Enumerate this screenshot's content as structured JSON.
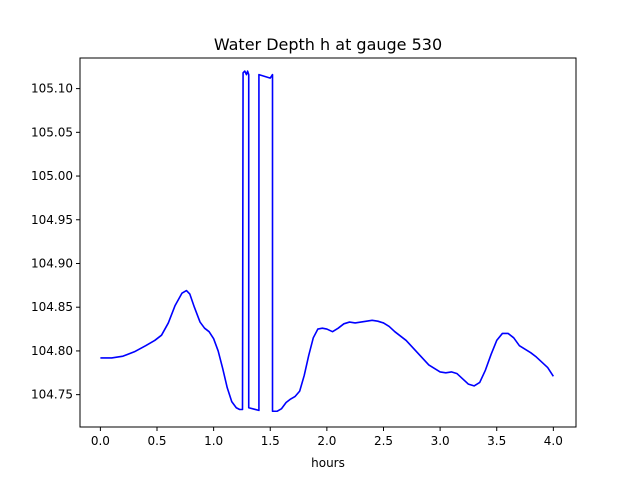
{
  "chart_data": {
    "type": "line",
    "title": "Water Depth h at gauge 530",
    "xlabel": "hours",
    "ylabel": "",
    "xlim": [
      -0.18,
      4.2
    ],
    "ylim": [
      104.713,
      105.135
    ],
    "grid": false,
    "x_ticks": [
      0.0,
      0.5,
      1.0,
      1.5,
      2.0,
      2.5,
      3.0,
      3.5,
      4.0
    ],
    "x_tick_labels": [
      "0.0",
      "0.5",
      "1.0",
      "1.5",
      "2.0",
      "2.5",
      "3.0",
      "3.5",
      "4.0"
    ],
    "y_ticks": [
      104.75,
      104.8,
      104.85,
      104.9,
      104.95,
      105.0,
      105.05,
      105.1
    ],
    "y_tick_labels": [
      "104.75",
      "104.80",
      "104.85",
      "104.90",
      "104.95",
      "105.00",
      "105.05",
      "105.10"
    ],
    "series": [
      {
        "color": "#0000ff",
        "x": [
          0.0,
          0.1,
          0.2,
          0.3,
          0.4,
          0.48,
          0.54,
          0.6,
          0.66,
          0.72,
          0.76,
          0.79,
          0.83,
          0.88,
          0.92,
          0.96,
          1.0,
          1.04,
          1.08,
          1.12,
          1.16,
          1.2,
          1.23,
          1.255,
          1.26,
          1.275,
          1.29,
          1.3,
          1.305,
          1.31,
          1.31,
          1.4,
          1.4,
          1.45,
          1.5,
          1.52,
          1.52,
          1.56,
          1.6,
          1.64,
          1.68,
          1.72,
          1.76,
          1.8,
          1.84,
          1.88,
          1.92,
          1.96,
          2.0,
          2.05,
          2.1,
          2.15,
          2.2,
          2.25,
          2.3,
          2.35,
          2.4,
          2.45,
          2.5,
          2.55,
          2.6,
          2.7,
          2.8,
          2.9,
          3.0,
          3.05,
          3.1,
          3.15,
          3.2,
          3.25,
          3.3,
          3.35,
          3.4,
          3.45,
          3.5,
          3.55,
          3.6,
          3.65,
          3.7,
          3.75,
          3.8,
          3.85,
          3.9,
          3.95,
          4.0
        ],
        "y": [
          104.792,
          104.792,
          104.794,
          104.799,
          104.806,
          104.812,
          104.818,
          104.832,
          104.852,
          104.866,
          104.869,
          104.865,
          104.85,
          104.833,
          104.826,
          104.822,
          104.814,
          104.8,
          104.78,
          104.758,
          104.742,
          104.735,
          104.733,
          104.733,
          105.118,
          105.12,
          105.116,
          105.12,
          105.118,
          105.116,
          104.735,
          104.732,
          105.116,
          105.114,
          105.112,
          105.116,
          104.731,
          104.731,
          104.734,
          104.741,
          104.745,
          104.748,
          104.754,
          104.772,
          104.795,
          104.815,
          104.825,
          104.826,
          104.825,
          104.822,
          104.826,
          104.831,
          104.833,
          104.832,
          104.833,
          104.834,
          104.835,
          104.834,
          104.832,
          104.828,
          104.822,
          104.812,
          104.798,
          104.784,
          104.776,
          104.775,
          104.776,
          104.774,
          104.768,
          104.762,
          104.76,
          104.764,
          104.778,
          104.796,
          104.812,
          104.82,
          104.82,
          104.815,
          104.806,
          104.802,
          104.798,
          104.793,
          104.787,
          104.781,
          104.771
        ]
      }
    ]
  }
}
